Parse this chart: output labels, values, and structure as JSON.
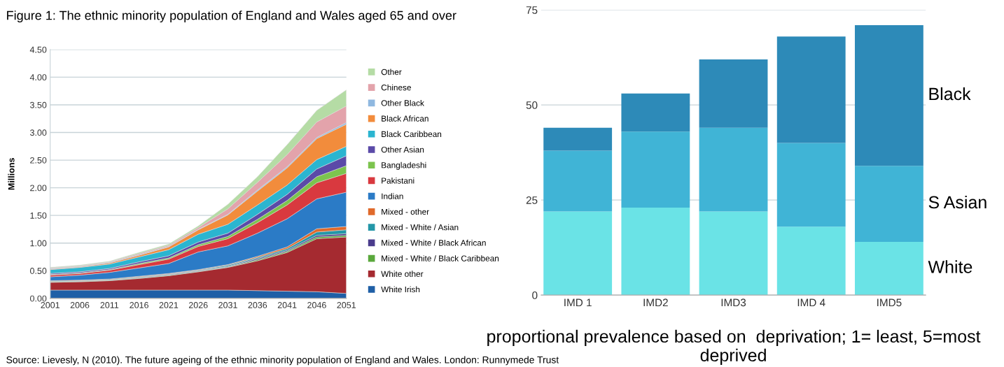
{
  "chart_data": [
    {
      "type": "area",
      "stacked": true,
      "title": "Figure 1: The ethnic minority population of England and Wales aged 65 and over",
      "ylabel": "Millions",
      "x": [
        2001,
        2006,
        2011,
        2016,
        2021,
        2026,
        2031,
        2036,
        2041,
        2046,
        2051
      ],
      "xlim": [
        2001,
        2051
      ],
      "xticks": [
        2001,
        2006,
        2011,
        2016,
        2021,
        2026,
        2031,
        2036,
        2041,
        2046,
        2051
      ],
      "ylim": [
        0,
        4.5
      ],
      "yticks": [
        {
          "value": 0,
          "label": "0.00"
        },
        {
          "value": 0.5,
          "label": "0.50"
        },
        {
          "value": 1,
          "label": "1.00"
        },
        {
          "value": 1.5,
          "label": "1.50"
        },
        {
          "value": 2,
          "label": "2.00"
        },
        {
          "value": 2.5,
          "label": "2.50"
        },
        {
          "value": 3,
          "label": "3.00"
        },
        {
          "value": 3.5,
          "label": "3.50"
        },
        {
          "value": 4,
          "label": "4.00"
        },
        {
          "value": 4.5,
          "label": "4.50"
        }
      ],
      "grid": "y",
      "legend": "right",
      "annotations": [
        "Source: Lievesly, N (2010). The future ageing of the ethnic minority population of England and Wales. London: Runnymede Trust"
      ],
      "series": [
        {
          "name": "White Irish",
          "color": "#1f5fa6",
          "values": [
            0.15,
            0.15,
            0.15,
            0.15,
            0.15,
            0.15,
            0.15,
            0.14,
            0.13,
            0.12,
            0.09
          ]
        },
        {
          "name": "White other",
          "color": "#a52a30",
          "values": [
            0.14,
            0.15,
            0.17,
            0.21,
            0.26,
            0.33,
            0.41,
            0.54,
            0.7,
            0.96,
            1.02
          ]
        },
        {
          "name": "Mixed - White / Black Caribbean",
          "color": "#5aa83c",
          "values": [
            0.01,
            0.01,
            0.01,
            0.01,
            0.01,
            0.01,
            0.01,
            0.02,
            0.02,
            0.03,
            0.03
          ]
        },
        {
          "name": "Mixed - White / Black African",
          "color": "#4a3c8c",
          "values": [
            0,
            0,
            0,
            0.01,
            0.01,
            0.01,
            0.01,
            0.02,
            0.02,
            0.03,
            0.03
          ]
        },
        {
          "name": "Mixed - White / Asian",
          "color": "#2497a8",
          "values": [
            0.01,
            0.01,
            0.01,
            0.01,
            0.01,
            0.01,
            0.02,
            0.02,
            0.03,
            0.06,
            0.07
          ]
        },
        {
          "name": "Mixed - other",
          "color": "#e06a2b",
          "values": [
            0.01,
            0.01,
            0.01,
            0.01,
            0.01,
            0.01,
            0.01,
            0.02,
            0.03,
            0.06,
            0.06
          ]
        },
        {
          "name": "Indian",
          "color": "#2b7bc6",
          "values": [
            0.07,
            0.09,
            0.12,
            0.15,
            0.18,
            0.32,
            0.34,
            0.42,
            0.51,
            0.54,
            0.62
          ]
        },
        {
          "name": "Pakistani",
          "color": "#d9393f",
          "values": [
            0.03,
            0.03,
            0.04,
            0.06,
            0.08,
            0.1,
            0.13,
            0.19,
            0.25,
            0.29,
            0.34
          ]
        },
        {
          "name": "Bangladeshi",
          "color": "#7cc44e",
          "values": [
            0.01,
            0.01,
            0.01,
            0.02,
            0.02,
            0.03,
            0.04,
            0.06,
            0.08,
            0.11,
            0.14
          ]
        },
        {
          "name": "Other Asian",
          "color": "#5b4aa8",
          "values": [
            0.02,
            0.02,
            0.02,
            0.03,
            0.04,
            0.05,
            0.06,
            0.09,
            0.11,
            0.14,
            0.18
          ]
        },
        {
          "name": "Black Caribbean",
          "color": "#2bb5d0",
          "values": [
            0.07,
            0.08,
            0.08,
            0.09,
            0.11,
            0.14,
            0.16,
            0.17,
            0.17,
            0.17,
            0.17
          ]
        },
        {
          "name": "Black African",
          "color": "#f28c3c",
          "values": [
            0.01,
            0.01,
            0.02,
            0.03,
            0.05,
            0.08,
            0.17,
            0.25,
            0.31,
            0.38,
            0.4
          ]
        },
        {
          "name": "Other Black",
          "color": "#8fb8e0",
          "values": [
            0.01,
            0.01,
            0.01,
            0.01,
            0.01,
            0.01,
            0.01,
            0.02,
            0.02,
            0.02,
            0.03
          ]
        },
        {
          "name": "Chinese",
          "color": "#e3a3ab",
          "values": [
            0.01,
            0.01,
            0.01,
            0.02,
            0.02,
            0.03,
            0.1,
            0.14,
            0.22,
            0.28,
            0.3
          ]
        },
        {
          "name": "Other",
          "color": "#b5dca5",
          "values": [
            0.01,
            0.01,
            0.01,
            0.02,
            0.02,
            0.03,
            0.08,
            0.1,
            0.18,
            0.21,
            0.29
          ]
        }
      ]
    },
    {
      "type": "bar",
      "stacked": true,
      "xlabel": "proportional prevalence based on  deprivation; 1= least, 5=most deprived",
      "categories": [
        "IMD 1",
        "IMD2",
        "IMD3",
        "IMD 4",
        "IMD5"
      ],
      "ylim": [
        0,
        75
      ],
      "yticks": [
        0,
        25,
        50,
        75
      ],
      "grid": "y",
      "legend": false,
      "series": [
        {
          "name": "White",
          "color": "#6ae3e6",
          "values": [
            22,
            23,
            22,
            18,
            14
          ]
        },
        {
          "name": "S Asian",
          "color": "#40b4d6",
          "values": [
            16,
            20,
            22,
            22,
            20
          ]
        },
        {
          "name": "Black",
          "color": "#2d8ab8",
          "values": [
            6,
            10,
            18,
            28,
            37
          ]
        }
      ]
    }
  ]
}
